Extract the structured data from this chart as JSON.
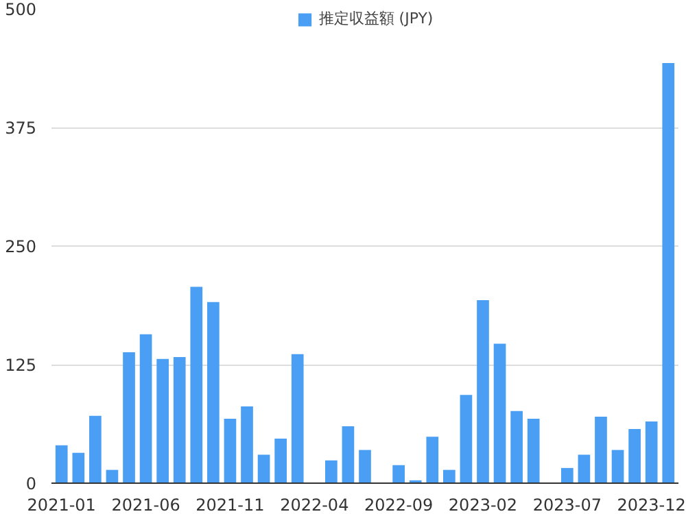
{
  "chart_data": {
    "type": "bar",
    "categories": [
      "2021-01",
      null,
      null,
      null,
      null,
      "2021-06",
      null,
      null,
      null,
      null,
      "2021-11",
      null,
      null,
      null,
      null,
      "2022-04",
      null,
      null,
      null,
      null,
      "2022-09",
      null,
      null,
      null,
      null,
      "2023-02",
      null,
      null,
      null,
      null,
      "2023-07",
      null,
      null,
      null,
      null,
      "2023-12",
      null
    ],
    "series": [
      {
        "name": "推定収益額 (JPY)",
        "color": "#4a9ff5",
        "values": [
          40,
          32,
          71,
          14,
          138,
          157,
          131,
          133,
          207,
          191,
          68,
          81,
          30,
          47,
          136,
          0,
          24,
          60,
          35,
          0,
          19,
          3,
          49,
          14,
          93,
          193,
          147,
          76,
          68,
          0,
          16,
          30,
          70,
          35,
          57,
          65,
          443
        ]
      }
    ],
    "ylim": [
      0,
      500
    ],
    "yticks": [
      0,
      125,
      250,
      375,
      500
    ],
    "grid": "y",
    "legend": "top"
  }
}
